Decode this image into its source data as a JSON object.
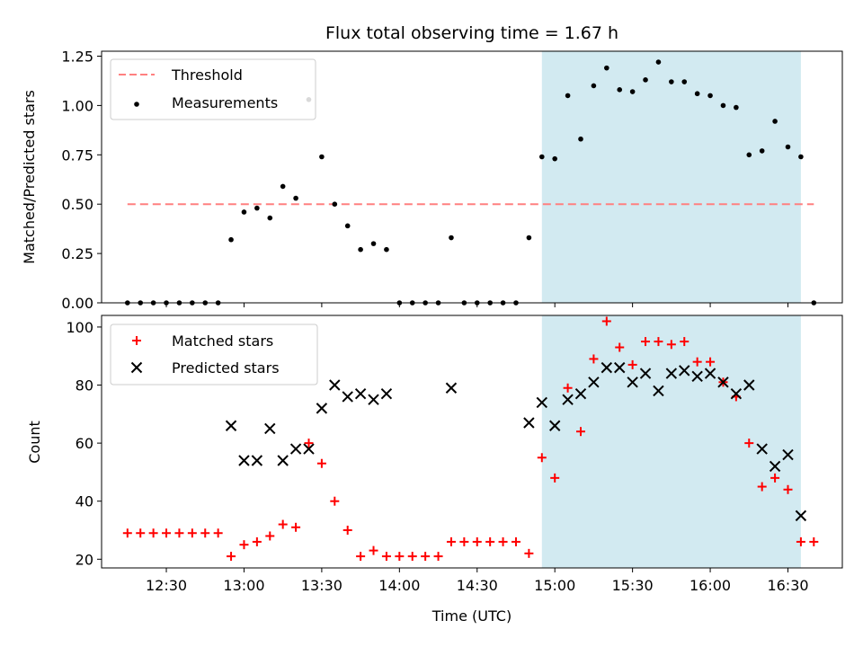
{
  "title": "Flux total observing time = 1.67 h",
  "colors": {
    "threshold": "#ff8080",
    "matched": "#ff0000",
    "predicted": "#000000",
    "window": "#add8e6",
    "measurement": "#000000"
  },
  "chart_data": [
    {
      "type": "scatter",
      "ylabel": "Matched/Predicted stars",
      "ylim": [
        0,
        1.275
      ],
      "yticks": [
        "0.00",
        "0.25",
        "0.50",
        "0.75",
        "1.00",
        "1.25"
      ],
      "ytick_values": [
        0,
        0.25,
        0.5,
        0.75,
        1.0,
        1.25
      ],
      "legend_position": "top-left",
      "threshold": {
        "name": "Threshold",
        "value": 0.5,
        "x_range": [
          "12:15",
          "16:40"
        ]
      },
      "shaded_window": [
        "14:55",
        "16:35"
      ],
      "series": [
        {
          "name": "Measurements",
          "x": [
            "12:15",
            "12:20",
            "12:25",
            "12:30",
            "12:35",
            "12:40",
            "12:45",
            "12:50",
            "12:55",
            "13:00",
            "13:05",
            "13:10",
            "13:15",
            "13:20",
            "13:25",
            "13:30",
            "13:35",
            "13:40",
            "13:45",
            "13:50",
            "13:55",
            "14:00",
            "14:05",
            "14:10",
            "14:15",
            "14:20",
            "14:25",
            "14:30",
            "14:35",
            "14:40",
            "14:45",
            "14:50",
            "14:55",
            "15:00",
            "15:05",
            "15:10",
            "15:15",
            "15:20",
            "15:25",
            "15:30",
            "15:35",
            "15:40",
            "15:45",
            "15:50",
            "15:55",
            "16:00",
            "16:05",
            "16:10",
            "16:15",
            "16:20",
            "16:25",
            "16:30",
            "16:35",
            "16:40"
          ],
          "y": [
            0,
            0,
            0,
            0,
            0,
            0,
            0,
            0,
            0.32,
            0.46,
            0.48,
            0.43,
            0.59,
            0.53,
            1.03,
            0.74,
            0.5,
            0.39,
            0.27,
            0.3,
            0.27,
            0,
            0,
            0,
            0,
            0.33,
            0,
            0,
            0,
            0,
            0,
            0.33,
            0.74,
            0.73,
            1.05,
            0.83,
            1.1,
            1.19,
            1.08,
            1.07,
            1.13,
            1.22,
            1.12,
            1.12,
            1.06,
            1.05,
            1.0,
            0.99,
            0.75,
            0.77,
            0.92,
            0.79,
            0.74,
            0
          ]
        }
      ]
    },
    {
      "type": "scatter",
      "ylabel": "Count",
      "xlabel": "Time (UTC)",
      "ylim": [
        17,
        104
      ],
      "yticks": [
        "20",
        "40",
        "60",
        "80",
        "100"
      ],
      "ytick_values": [
        20,
        40,
        60,
        80,
        100
      ],
      "xticks": [
        "12:30",
        "13:00",
        "13:30",
        "14:00",
        "14:30",
        "15:00",
        "15:30",
        "16:00",
        "16:30"
      ],
      "legend_position": "top-left",
      "shaded_window": [
        "14:55",
        "16:35"
      ],
      "series": [
        {
          "name": "Matched stars",
          "x": [
            "12:15",
            "12:20",
            "12:25",
            "12:30",
            "12:35",
            "12:40",
            "12:45",
            "12:50",
            "12:55",
            "13:00",
            "13:05",
            "13:10",
            "13:15",
            "13:20",
            "13:25",
            "13:30",
            "13:35",
            "13:40",
            "13:45",
            "13:50",
            "13:55",
            "14:00",
            "14:05",
            "14:10",
            "14:15",
            "14:20",
            "14:25",
            "14:30",
            "14:35",
            "14:40",
            "14:45",
            "14:50",
            "14:55",
            "15:00",
            "15:05",
            "15:10",
            "15:15",
            "15:20",
            "15:25",
            "15:30",
            "15:35",
            "15:40",
            "15:45",
            "15:50",
            "15:55",
            "16:00",
            "16:05",
            "16:10",
            "16:15",
            "16:20",
            "16:25",
            "16:30",
            "16:35",
            "16:40"
          ],
          "y": [
            29,
            29,
            29,
            29,
            29,
            29,
            29,
            29,
            21,
            25,
            26,
            28,
            32,
            31,
            60,
            53,
            40,
            30,
            21,
            23,
            21,
            21,
            21,
            21,
            21,
            26,
            26,
            26,
            26,
            26,
            26,
            22,
            55,
            48,
            79,
            64,
            89,
            102,
            93,
            87,
            95,
            95,
            94,
            95,
            88,
            88,
            81,
            76,
            60,
            45,
            48,
            44,
            26,
            26
          ]
        },
        {
          "name": "Predicted stars",
          "x": [
            "12:55",
            "13:00",
            "13:05",
            "13:10",
            "13:15",
            "13:20",
            "13:25",
            "13:30",
            "13:35",
            "13:40",
            "13:45",
            "13:50",
            "13:55",
            "14:20",
            "14:50",
            "14:55",
            "15:00",
            "15:05",
            "15:10",
            "15:15",
            "15:20",
            "15:25",
            "15:30",
            "15:35",
            "15:40",
            "15:45",
            "15:50",
            "15:55",
            "16:00",
            "16:05",
            "16:10",
            "16:15",
            "16:20",
            "16:25",
            "16:30",
            "16:35"
          ],
          "y": [
            66,
            54,
            54,
            65,
            54,
            58,
            58,
            72,
            80,
            76,
            77,
            75,
            77,
            79,
            67,
            74,
            66,
            75,
            77,
            81,
            86,
            86,
            81,
            84,
            78,
            84,
            85,
            83,
            84,
            81,
            77,
            80,
            58,
            52,
            56,
            35
          ]
        }
      ]
    }
  ]
}
